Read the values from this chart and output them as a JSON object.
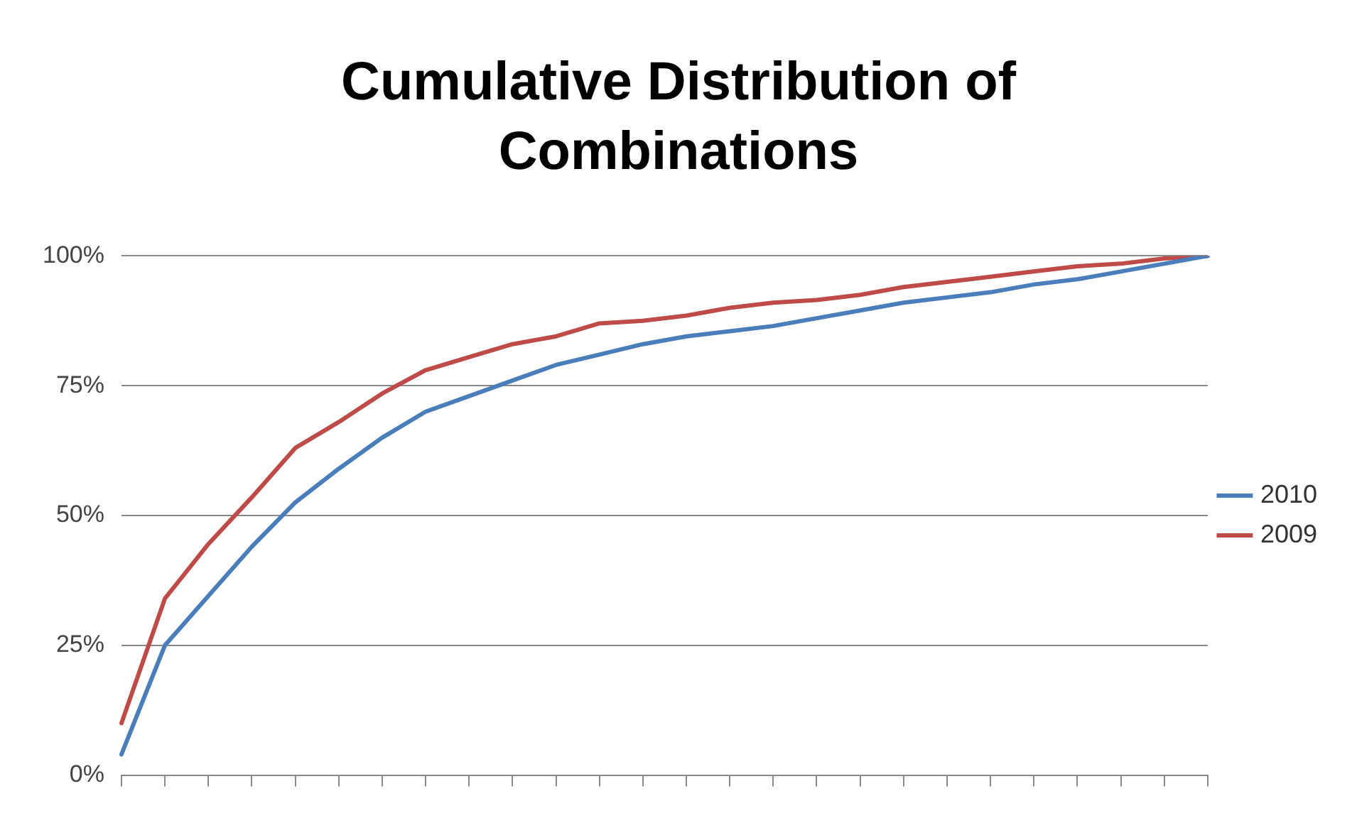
{
  "chart_data": {
    "type": "line",
    "title": "Cumulative Distribution of Combinations",
    "categories": [
      null,
      null,
      null,
      null,
      null,
      null,
      null,
      null,
      null,
      null,
      null,
      null,
      null,
      null,
      null,
      null,
      null,
      null,
      null,
      null,
      null,
      null,
      null,
      null,
      null,
      null
    ],
    "series": [
      {
        "name": "2010",
        "color": "#4a7ebb",
        "values": [
          4,
          25,
          34.5,
          44,
          52.5,
          59,
          65,
          70,
          73,
          76,
          79,
          81,
          83,
          84.5,
          85.5,
          86.5,
          88,
          89.5,
          91,
          92,
          93,
          94.5,
          95.5,
          97,
          98.5,
          100
        ]
      },
      {
        "name": "2009",
        "color": "#be4b48",
        "values": [
          10,
          34,
          44.5,
          53.5,
          63,
          68,
          73.5,
          78,
          80.5,
          83,
          84.5,
          87,
          87.5,
          88.5,
          90,
          91,
          91.5,
          92.5,
          94,
          95,
          96,
          97,
          98,
          98.5,
          99.5,
          100
        ]
      }
    ],
    "ylim": [
      0,
      100
    ],
    "yticks": [
      {
        "value": 0,
        "label": "0%"
      },
      {
        "value": 25,
        "label": "25%"
      },
      {
        "value": 50,
        "label": "50%"
      },
      {
        "value": 75,
        "label": "75%"
      },
      {
        "value": 100,
        "label": "100%"
      }
    ],
    "grid": "y",
    "legend": "right",
    "tick_labels": "y",
    "marker": "none",
    "line_style": "solid"
  }
}
